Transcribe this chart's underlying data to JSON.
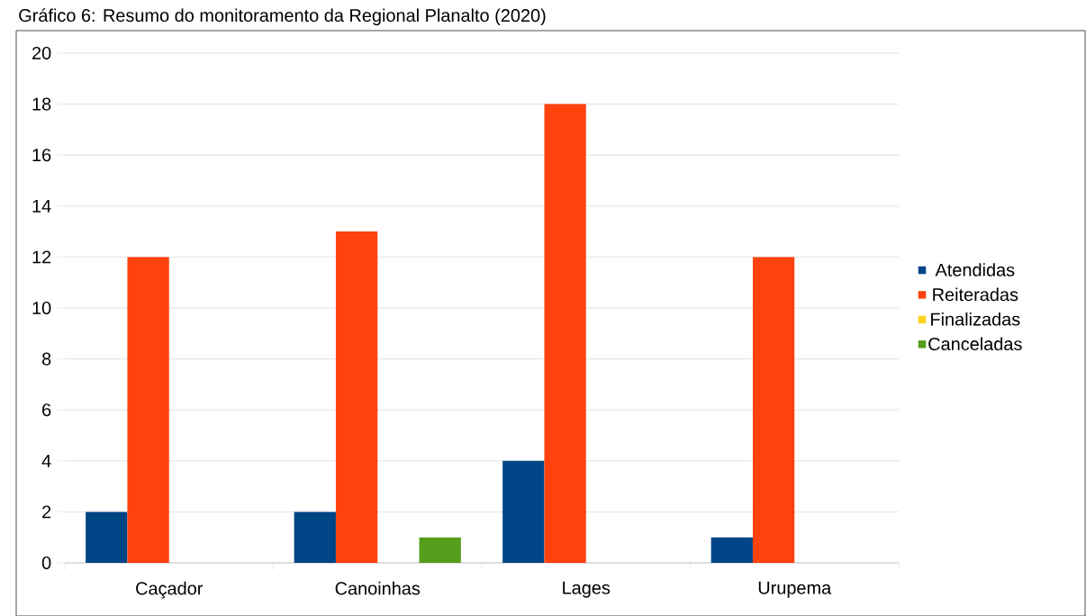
{
  "chart_data": {
    "type": "bar",
    "title": "Gráfico 6: Resumo do monitoramento da Regional Planalto (2020)",
    "categories": [
      "Caçador",
      "Canoinhas",
      "Lages",
      "Urupema"
    ],
    "series": [
      {
        "name": "Atendidas",
        "color": "#004586",
        "values": [
          2,
          2,
          4,
          1
        ]
      },
      {
        "name": "Reiteradas",
        "color": "#ff420e",
        "values": [
          12,
          13,
          18,
          12
        ]
      },
      {
        "name": "Finalizadas",
        "color": "#ffd320",
        "values": [
          0,
          0,
          0,
          0
        ]
      },
      {
        "name": "Canceladas",
        "color": "#579d1c",
        "values": [
          0,
          1,
          0,
          0
        ]
      }
    ],
    "ylim": [
      0,
      20
    ],
    "yticks": [
      0,
      2,
      4,
      6,
      8,
      10,
      12,
      14,
      16,
      18,
      20
    ],
    "grid": "y",
    "legend": "right"
  }
}
